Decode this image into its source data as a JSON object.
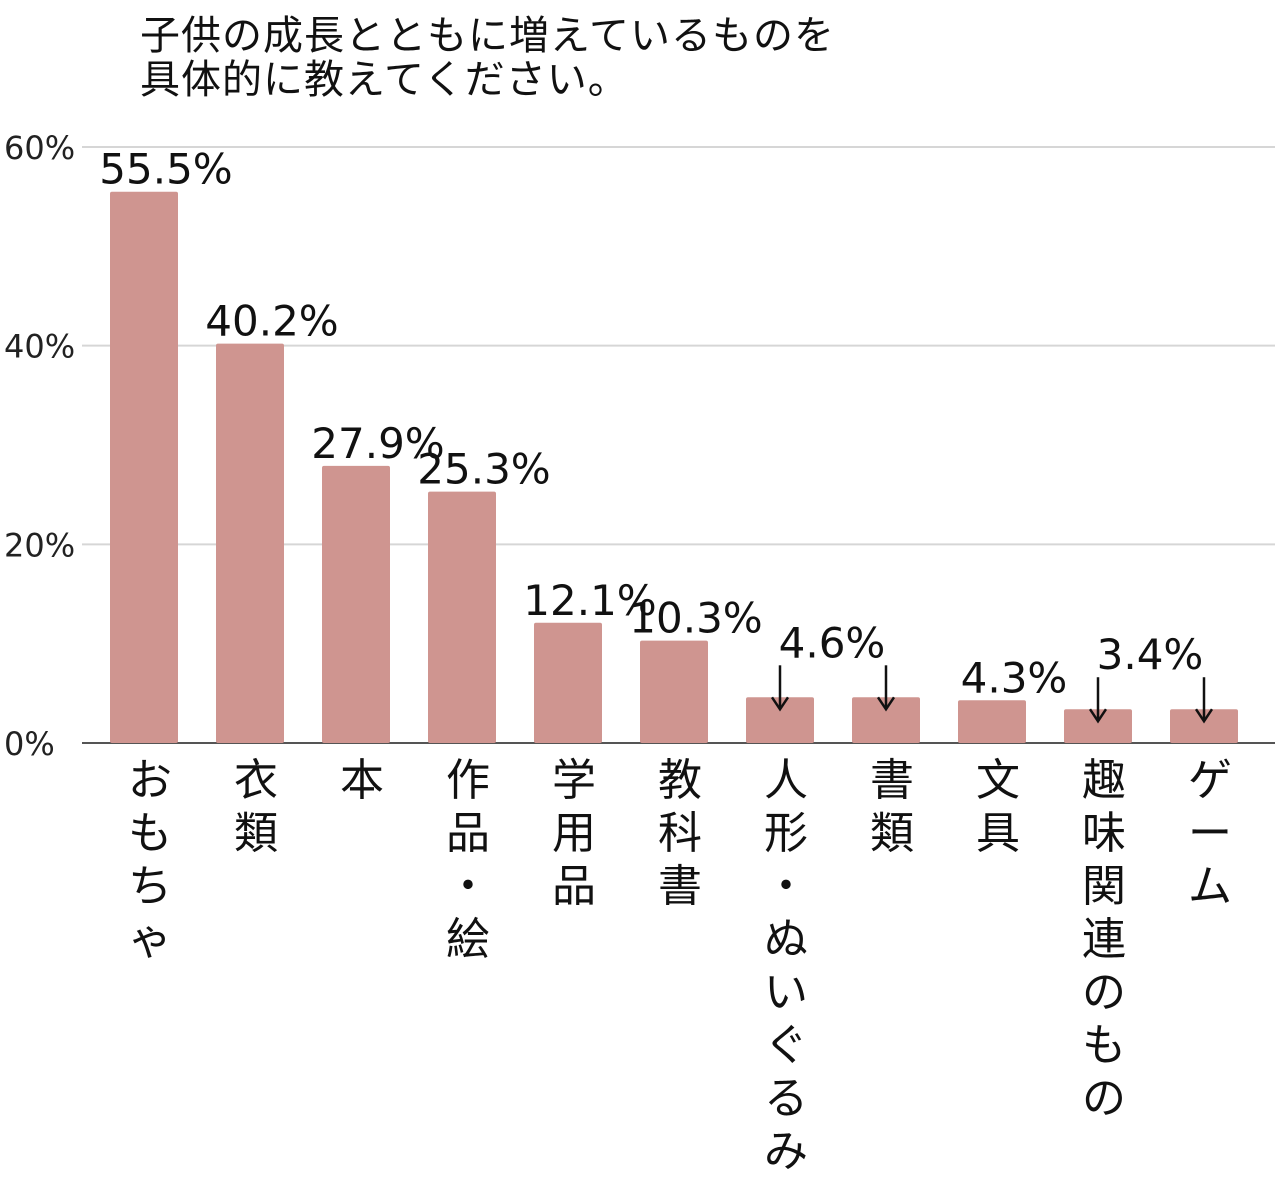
{
  "chart_data": {
    "type": "bar",
    "title_lines": [
      "子供の成長とともに増えているものを",
      "具体的に教えてください。"
    ],
    "categories": [
      "おもちゃ",
      "衣類",
      "本",
      "作品・絵",
      "学用品",
      "教科書",
      "人形・ぬいぐるみ",
      "書類",
      "文具",
      "趣味関連のもの",
      "ゲーム"
    ],
    "values": [
      55.5,
      40.2,
      27.9,
      25.3,
      12.1,
      10.3,
      4.6,
      4.6,
      4.3,
      3.4,
      3.4
    ],
    "data_labels": [
      "55.5%",
      "40.2%",
      "27.9%",
      "25.3%",
      "12.1%",
      "10.3%",
      "4.6%",
      "",
      "4.3%",
      "3.4%",
      ""
    ],
    "label_arrows": [
      false,
      false,
      false,
      false,
      false,
      false,
      true,
      true,
      false,
      true,
      true
    ],
    "y_ticks": [
      0,
      20,
      40,
      60
    ],
    "y_tick_labels": [
      "0%",
      "20%",
      "40%",
      "60%"
    ],
    "ylim": [
      0,
      60
    ],
    "grid": true,
    "bar_color": "#cf9590",
    "grid_color": "#d6d6d6",
    "axis_color": "#555555"
  }
}
